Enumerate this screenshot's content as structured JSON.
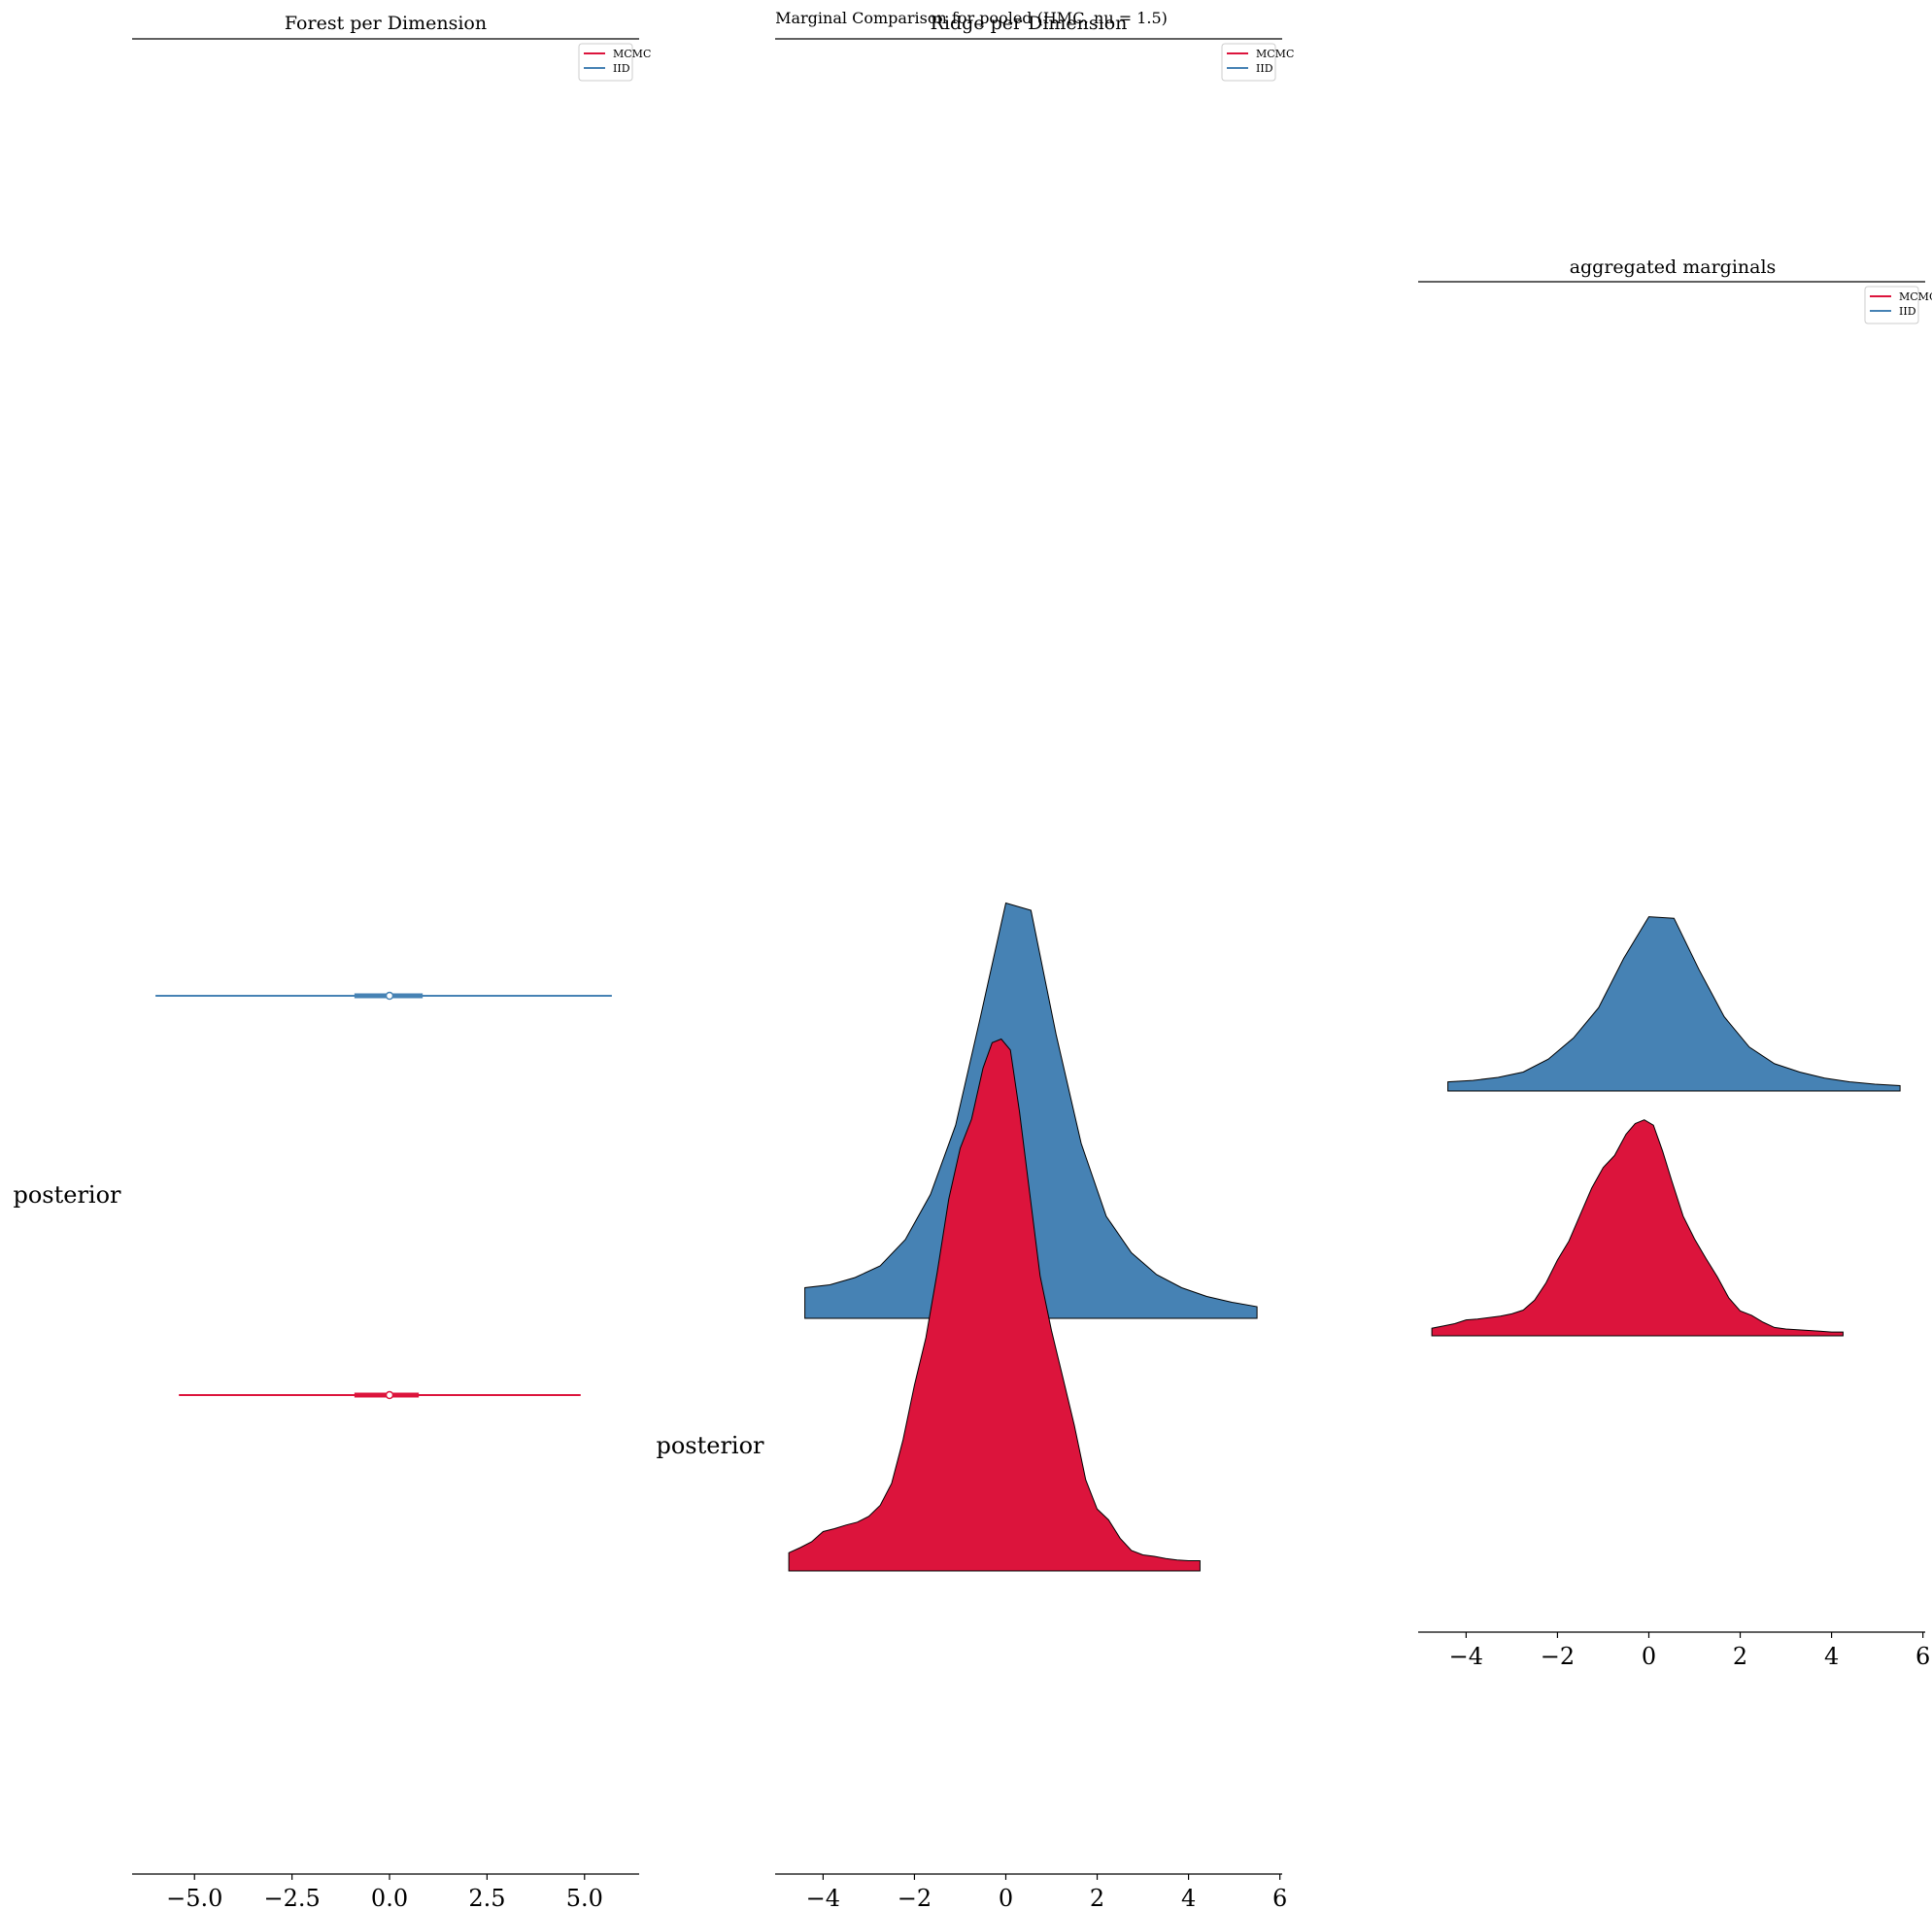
{
  "figure": {
    "suptitle": "Marginal Comparison for pooled (HMC, nu = 1.5)"
  },
  "colors": {
    "mcmc": "#dc143c",
    "iid": "#4682b4",
    "outline": "#000000"
  },
  "legend_entries": [
    "MCMC",
    "IID"
  ],
  "chart_data": [
    {
      "type": "forest",
      "title": "Forest per Dimension",
      "ylabel": "posterior",
      "xlabel": "",
      "xticks": [
        "−5.0",
        "−2.5",
        "0.0",
        "2.5",
        "5.0"
      ],
      "xtick_values": [
        -5.0,
        -2.5,
        0.0,
        2.5,
        5.0
      ],
      "xlim": [
        -6.6,
        6.4
      ],
      "legend": "top-right",
      "grid": false,
      "series": [
        {
          "name": "IID",
          "color": "#4682b4",
          "lower": -6.0,
          "q_low": -0.9,
          "median": 0.0,
          "q_high": 0.85,
          "upper": 5.7
        },
        {
          "name": "MCMC",
          "color": "#dc143c",
          "lower": -5.4,
          "q_low": -0.9,
          "median": 0.0,
          "q_high": 0.75,
          "upper": 4.9
        }
      ]
    },
    {
      "type": "ridge",
      "title": "Ridge per Dimension",
      "ylabel": "posterior",
      "xlabel": "",
      "xticks": [
        "−4",
        "−2",
        "0",
        "2",
        "4",
        "6"
      ],
      "xtick_values": [
        -4,
        -2,
        0,
        2,
        4,
        6
      ],
      "xlim": [
        -5.05,
        6.05
      ],
      "legend": "top-right",
      "grid": false,
      "series": [
        {
          "name": "IID",
          "color": "#4682b4",
          "x": [
            -4.4,
            -4.4,
            -3.85,
            -3.3,
            -2.75,
            -2.2,
            -1.65,
            -1.1,
            -0.55,
            0.0,
            0.55,
            1.1,
            1.65,
            2.2,
            2.75,
            3.3,
            3.85,
            4.4,
            4.95,
            5.5,
            5.5
          ],
          "density": [
            0.0,
            0.042,
            0.046,
            0.056,
            0.072,
            0.108,
            0.17,
            0.265,
            0.415,
            0.57,
            0.56,
            0.39,
            0.24,
            0.14,
            0.09,
            0.06,
            0.042,
            0.03,
            0.022,
            0.016,
            0.0
          ]
        },
        {
          "name": "MCMC",
          "color": "#dc143c",
          "x": [
            -4.75,
            -4.75,
            -4.5,
            -4.25,
            -4.0,
            -3.75,
            -3.5,
            -3.25,
            -3.0,
            -2.75,
            -2.5,
            -2.25,
            -2.0,
            -1.75,
            -1.5,
            -1.25,
            -1.0,
            -0.75,
            -0.5,
            -0.3,
            -0.1,
            0.1,
            0.3,
            0.5,
            0.75,
            1.0,
            1.25,
            1.5,
            1.75,
            2.0,
            2.25,
            2.5,
            2.75,
            3.0,
            3.25,
            3.5,
            3.75,
            4.0,
            4.25,
            4.25
          ],
          "density": [
            0.0,
            0.025,
            0.032,
            0.04,
            0.054,
            0.058,
            0.063,
            0.067,
            0.075,
            0.09,
            0.12,
            0.18,
            0.255,
            0.32,
            0.41,
            0.51,
            0.58,
            0.62,
            0.69,
            0.725,
            0.73,
            0.715,
            0.63,
            0.53,
            0.405,
            0.33,
            0.265,
            0.2,
            0.125,
            0.085,
            0.07,
            0.045,
            0.028,
            0.022,
            0.02,
            0.017,
            0.015,
            0.014,
            0.014,
            0.0
          ]
        }
      ]
    },
    {
      "type": "ridge",
      "title": "aggregated marginals",
      "ylabel": "",
      "xlabel": "",
      "xticks": [
        "−4",
        "−2",
        "0",
        "2",
        "4",
        "6"
      ],
      "xtick_values": [
        -4,
        -2,
        0,
        2,
        4,
        6
      ],
      "xlim": [
        -5.05,
        6.05
      ],
      "legend": "top-right",
      "grid": false,
      "series": [
        {
          "name": "IID",
          "color": "#4682b4",
          "x": [
            -4.4,
            -4.4,
            -3.85,
            -3.3,
            -2.75,
            -2.2,
            -1.65,
            -1.1,
            -0.55,
            0.0,
            0.55,
            1.1,
            1.65,
            2.2,
            2.75,
            3.3,
            3.85,
            4.4,
            4.95,
            5.5,
            5.5
          ],
          "density": [
            0.0,
            0.012,
            0.014,
            0.018,
            0.025,
            0.042,
            0.07,
            0.11,
            0.175,
            0.23,
            0.228,
            0.16,
            0.098,
            0.058,
            0.036,
            0.025,
            0.017,
            0.012,
            0.009,
            0.007,
            0.0
          ]
        },
        {
          "name": "MCMC",
          "color": "#dc143c",
          "x": [
            -4.75,
            -4.75,
            -4.5,
            -4.25,
            -4.0,
            -3.75,
            -3.5,
            -3.25,
            -3.0,
            -2.75,
            -2.5,
            -2.25,
            -2.0,
            -1.75,
            -1.5,
            -1.25,
            -1.0,
            -0.75,
            -0.5,
            -0.3,
            -0.1,
            0.1,
            0.3,
            0.5,
            0.75,
            1.0,
            1.25,
            1.5,
            1.75,
            2.0,
            2.25,
            2.5,
            2.75,
            3.0,
            3.25,
            3.5,
            3.75,
            4.0,
            4.25,
            4.25
          ],
          "density": [
            0.0,
            0.01,
            0.013,
            0.016,
            0.021,
            0.022,
            0.024,
            0.026,
            0.029,
            0.034,
            0.047,
            0.07,
            0.1,
            0.125,
            0.16,
            0.195,
            0.222,
            0.238,
            0.266,
            0.28,
            0.285,
            0.278,
            0.244,
            0.205,
            0.158,
            0.128,
            0.102,
            0.078,
            0.05,
            0.033,
            0.027,
            0.018,
            0.011,
            0.009,
            0.008,
            0.007,
            0.006,
            0.005,
            0.005,
            0.0
          ]
        }
      ]
    }
  ]
}
